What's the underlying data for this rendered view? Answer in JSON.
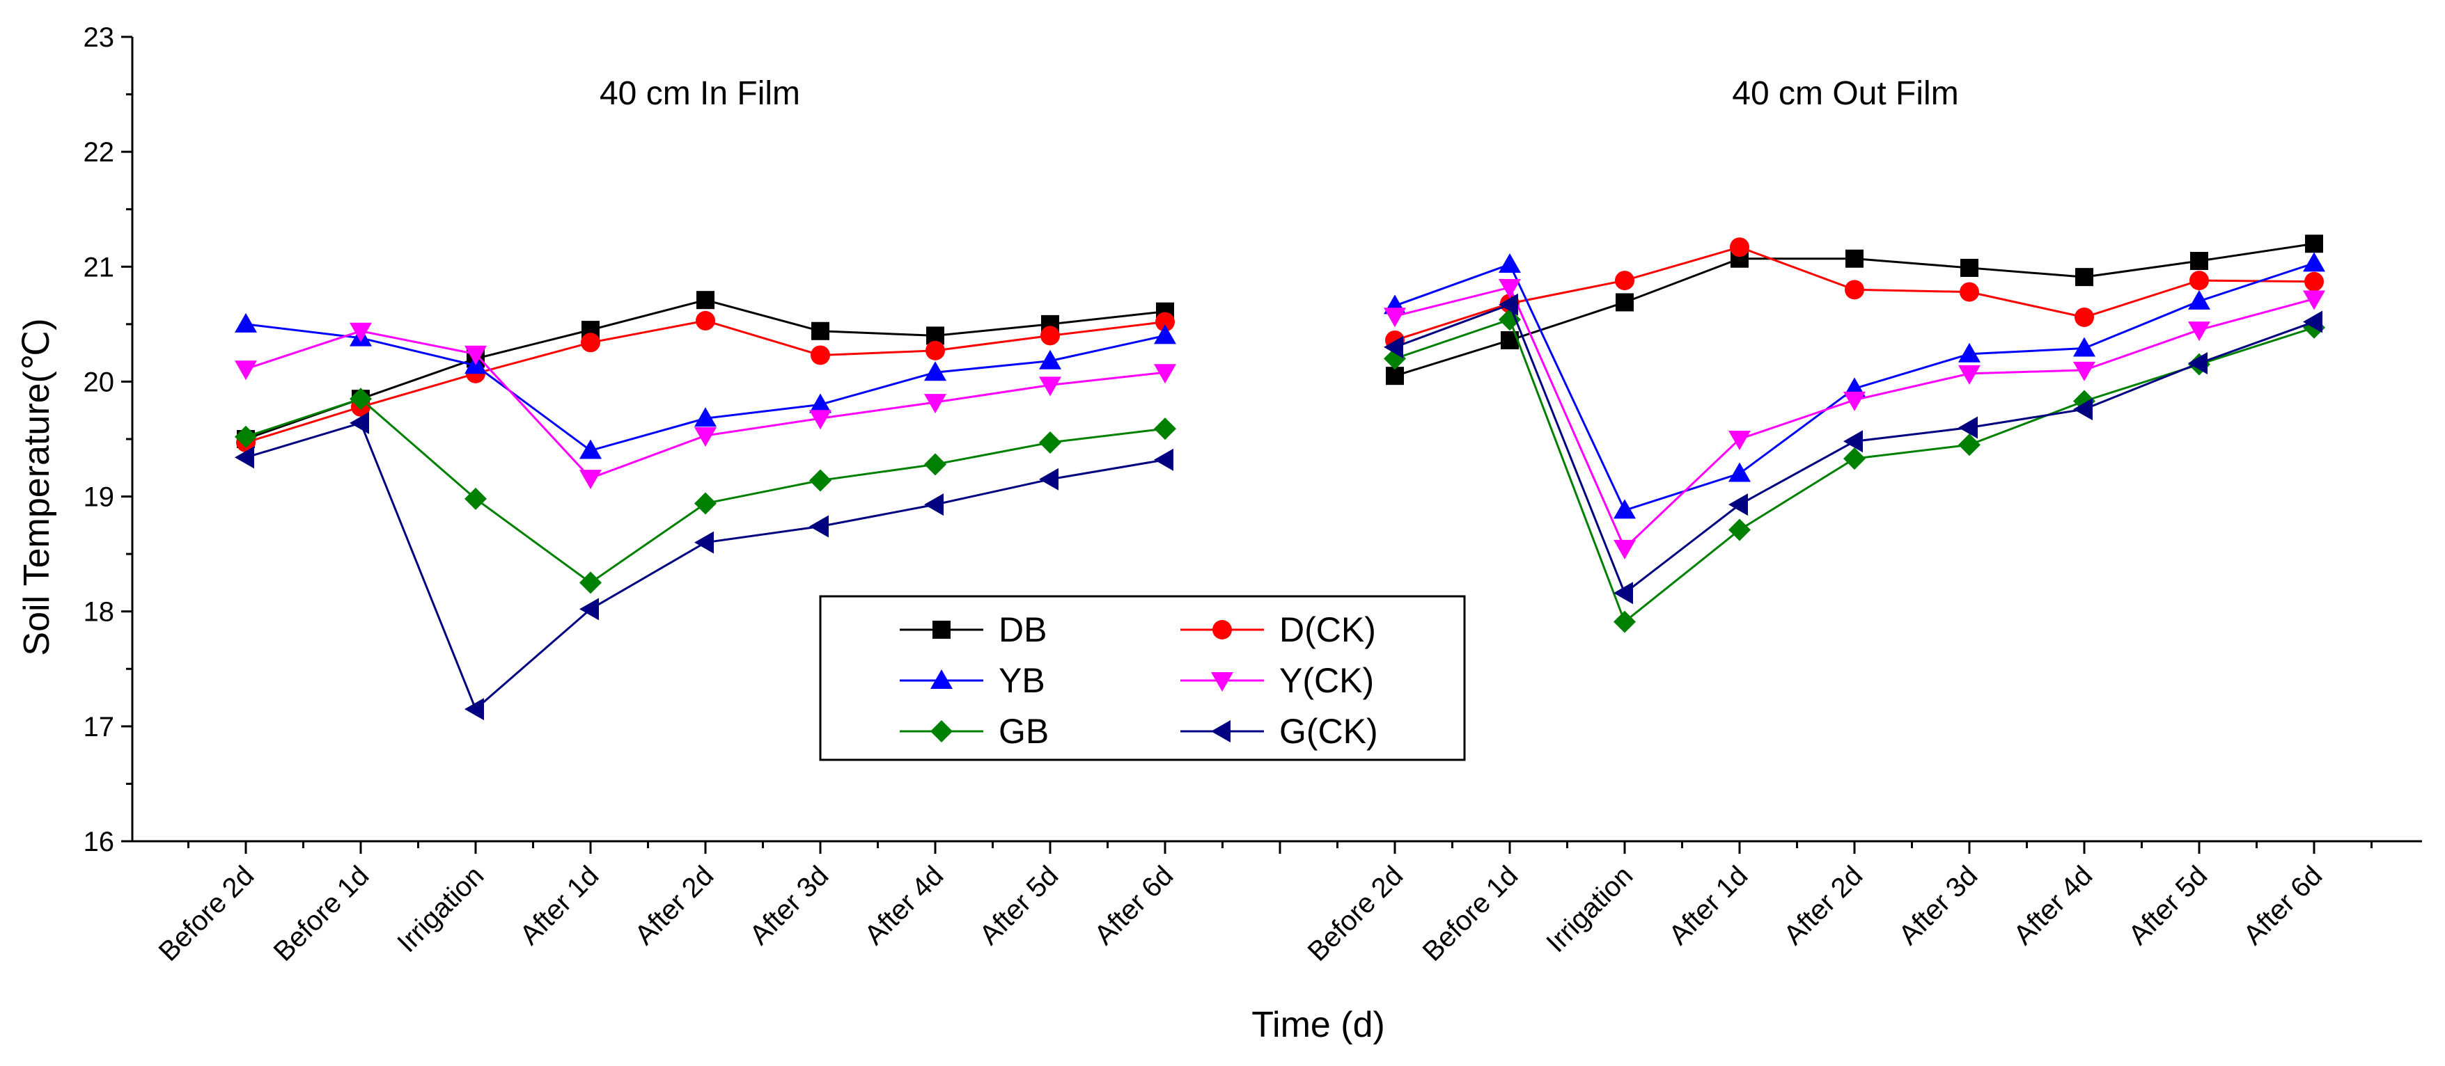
{
  "chart_data": {
    "type": "line",
    "xlabel": "Time (d)",
    "ylabel": "Soil Temperature(℃)",
    "ylim": [
      16,
      23
    ],
    "yticks": [
      16,
      17,
      18,
      19,
      20,
      21,
      22,
      23
    ],
    "grid": false,
    "legend_position": "center",
    "categories": [
      "Before 2d",
      "Before 1d",
      "Irrigation",
      "After 1d",
      "After 2d",
      "After 3d",
      "After 4d",
      "After 5d",
      "After 6d"
    ],
    "panels": [
      {
        "title": "40 cm In Film",
        "series": [
          {
            "name": "DB",
            "color": "#000000",
            "marker": "square",
            "values": [
              19.5,
              19.85,
              20.2,
              20.45,
              20.71,
              20.44,
              20.4,
              20.5,
              20.61
            ]
          },
          {
            "name": "D(CK)",
            "color": "#ff0000",
            "marker": "circle",
            "values": [
              19.47,
              19.78,
              20.07,
              20.34,
              20.53,
              20.23,
              20.27,
              20.4,
              20.52
            ]
          },
          {
            "name": "YB",
            "color": "#0000ff",
            "marker": "triangle-up",
            "values": [
              20.5,
              20.38,
              20.14,
              19.4,
              19.68,
              19.8,
              20.08,
              20.18,
              20.4
            ]
          },
          {
            "name": "Y(CK)",
            "color": "#ff00ff",
            "marker": "triangle-down",
            "values": [
              20.11,
              20.44,
              20.24,
              19.16,
              19.53,
              19.68,
              19.82,
              19.97,
              20.08
            ]
          },
          {
            "name": "GB",
            "color": "#008000",
            "marker": "diamond",
            "values": [
              19.52,
              19.85,
              18.98,
              18.25,
              18.94,
              19.14,
              19.28,
              19.47,
              19.59
            ]
          },
          {
            "name": "G(CK)",
            "color": "#000080",
            "marker": "triangle-left",
            "values": [
              19.34,
              19.64,
              17.15,
              18.02,
              18.6,
              18.74,
              18.93,
              19.15,
              19.32
            ]
          }
        ]
      },
      {
        "title": "40 cm Out Film",
        "series": [
          {
            "name": "DB",
            "color": "#000000",
            "marker": "square",
            "values": [
              20.05,
              20.36,
              20.69,
              21.07,
              21.07,
              20.99,
              20.91,
              21.05,
              21.2
            ]
          },
          {
            "name": "D(CK)",
            "color": "#ff0000",
            "marker": "circle",
            "values": [
              20.36,
              20.68,
              20.88,
              21.17,
              20.8,
              20.78,
              20.56,
              20.88,
              20.87
            ]
          },
          {
            "name": "YB",
            "color": "#0000ff",
            "marker": "triangle-up",
            "values": [
              20.66,
              21.02,
              18.88,
              19.2,
              19.94,
              20.24,
              20.29,
              20.7,
              21.03
            ]
          },
          {
            "name": "Y(CK)",
            "color": "#ff00ff",
            "marker": "triangle-down",
            "values": [
              20.57,
              20.82,
              18.55,
              19.5,
              19.84,
              20.07,
              20.1,
              20.45,
              20.72
            ]
          },
          {
            "name": "GB",
            "color": "#008000",
            "marker": "diamond",
            "values": [
              20.2,
              20.54,
              17.91,
              18.71,
              19.33,
              19.45,
              19.83,
              20.15,
              20.47
            ]
          },
          {
            "name": "G(CK)",
            "color": "#000080",
            "marker": "triangle-left",
            "values": [
              20.3,
              20.67,
              18.16,
              18.93,
              19.48,
              19.6,
              19.76,
              20.16,
              20.52
            ]
          }
        ]
      }
    ]
  }
}
